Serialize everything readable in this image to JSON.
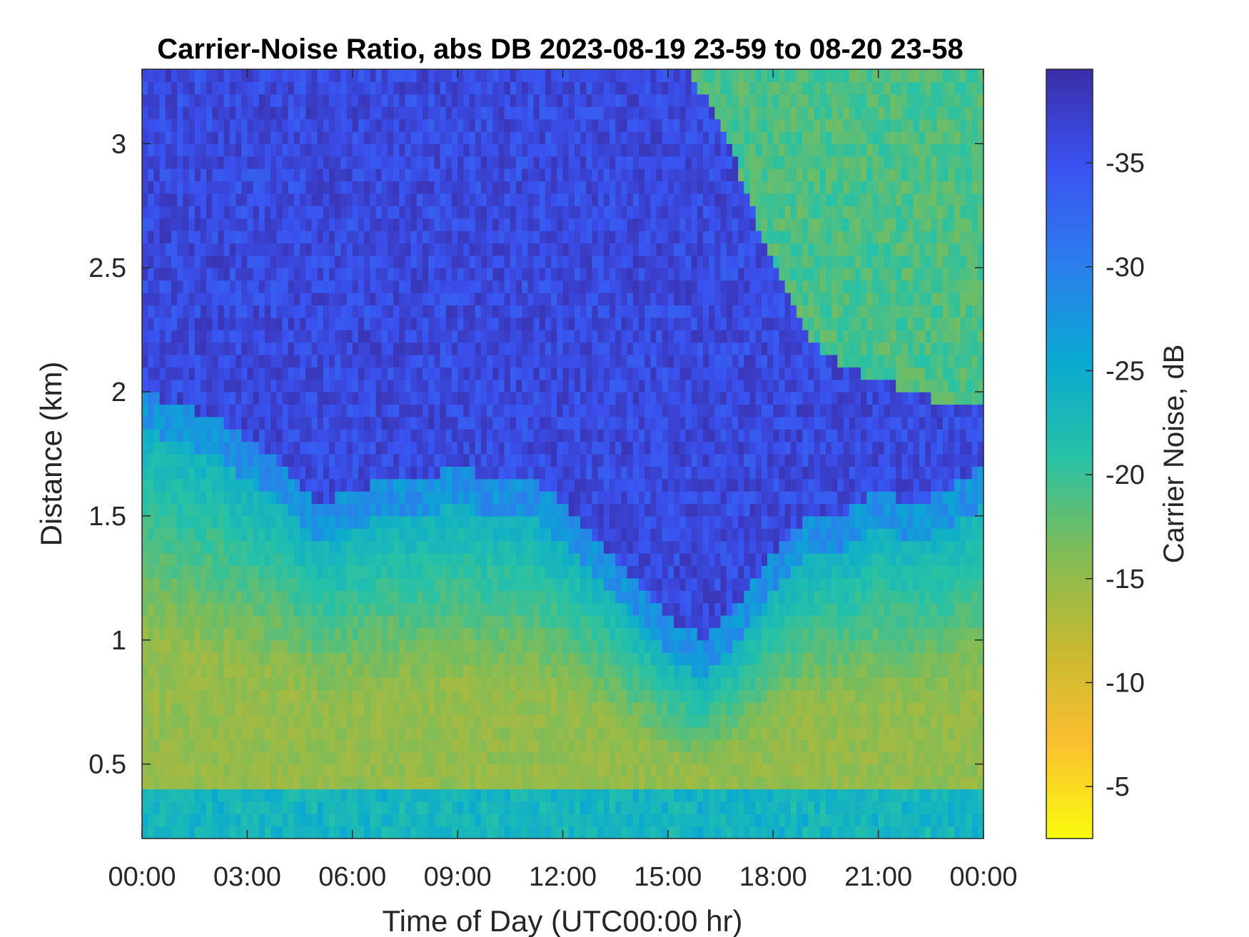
{
  "chart_data": {
    "type": "heatmap",
    "title": "Carrier-Noise Ratio, abs DB 2023-08-19 23-59 to 08-20 23-58",
    "xlabel": "Time of Day (UTC00:00 hr)",
    "ylabel": "Distance (km)",
    "x_ticks": [
      {
        "value": 0,
        "label": "00:00"
      },
      {
        "value": 3,
        "label": "03:00"
      },
      {
        "value": 6,
        "label": "06:00"
      },
      {
        "value": 9,
        "label": "09:00"
      },
      {
        "value": 12,
        "label": "12:00"
      },
      {
        "value": 15,
        "label": "15:00"
      },
      {
        "value": 18,
        "label": "18:00"
      },
      {
        "value": 21,
        "label": "21:00"
      },
      {
        "value": 24,
        "label": "00:00"
      }
    ],
    "y_ticks": [
      {
        "value": 0.5,
        "label": "0.5"
      },
      {
        "value": 1,
        "label": "1"
      },
      {
        "value": 1.5,
        "label": "1.5"
      },
      {
        "value": 2,
        "label": "2"
      },
      {
        "value": 2.5,
        "label": "2.5"
      },
      {
        "value": 3,
        "label": "3"
      }
    ],
    "xlim": [
      0,
      24
    ],
    "ylim": [
      0.2,
      3.3
    ],
    "colorbar": {
      "label": "Carrier Noise, dB",
      "range": [
        -39.5,
        -2.5
      ],
      "reversed": true,
      "ticks": [
        {
          "value": -5,
          "label": "-5"
        },
        {
          "value": -10,
          "label": "-10"
        },
        {
          "value": -15,
          "label": "-15"
        },
        {
          "value": -20,
          "label": "-20"
        },
        {
          "value": -25,
          "label": "-25"
        },
        {
          "value": -30,
          "label": "-30"
        },
        {
          "value": -35,
          "label": "-35"
        }
      ],
      "colormap": [
        "#f9fb0e",
        "#fbbf30",
        "#c4b930",
        "#7ebc58",
        "#25c1a8",
        "#0aa8d3",
        "#2c7ded",
        "#3a52f0",
        "#3a2ea8"
      ]
    },
    "noise_floor_db": -36,
    "boundary_layer_top_km": {
      "time_hr": [
        0,
        1,
        2,
        3,
        4,
        5,
        6,
        7,
        8,
        9,
        10,
        11,
        12,
        13,
        14,
        15,
        16,
        17,
        18,
        19,
        20,
        21,
        22,
        23,
        24
      ],
      "height_km": [
        1.85,
        1.8,
        1.75,
        1.65,
        1.55,
        1.4,
        1.45,
        1.5,
        1.5,
        1.55,
        1.5,
        1.5,
        1.4,
        1.25,
        1.1,
        0.95,
        0.85,
        1.0,
        1.2,
        1.35,
        1.35,
        1.45,
        1.4,
        1.45,
        1.55
      ]
    },
    "upper_layer_bottom_km": {
      "time_hr": [
        15.5,
        16,
        17,
        18,
        19,
        20,
        21,
        22,
        23,
        24
      ],
      "height_km": [
        3.3,
        3.2,
        2.9,
        2.5,
        2.2,
        2.1,
        2.05,
        2.0,
        1.95,
        1.95
      ]
    },
    "boundary_layer_core_db": -15,
    "upper_layer_core_db": -19
  }
}
